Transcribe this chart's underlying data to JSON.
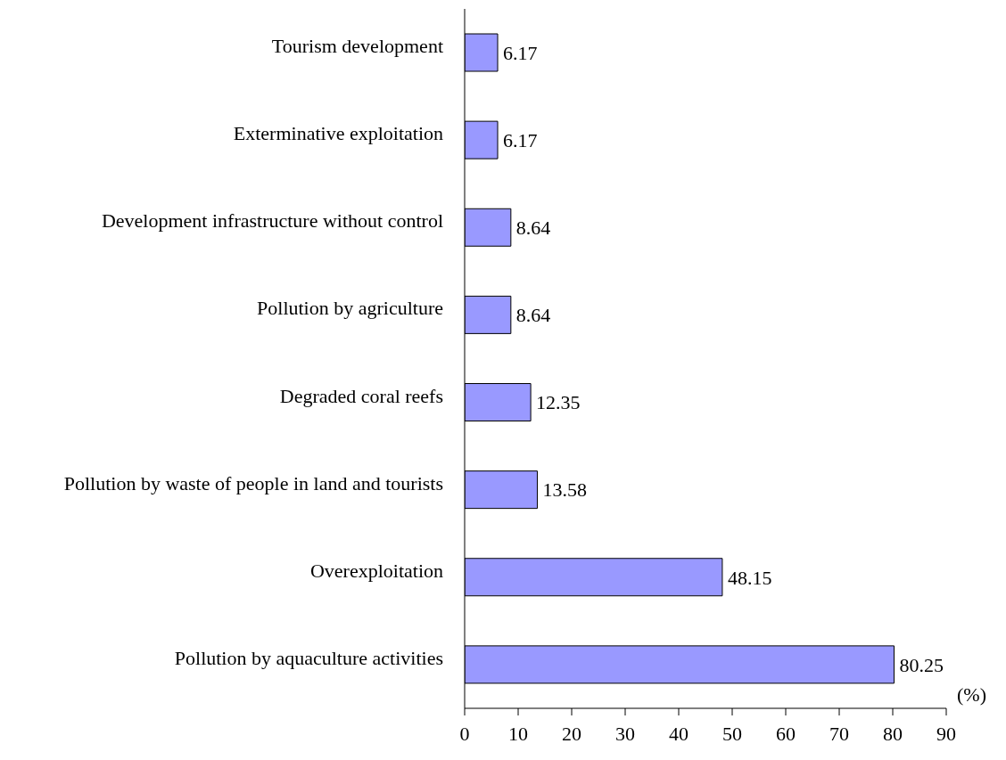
{
  "chart_data": {
    "type": "bar",
    "orientation": "horizontal",
    "xlabel": "(%)",
    "categories": [
      "Tourism development",
      "Exterminative exploitation",
      "Development infrastructure without control",
      "Pollution by agriculture",
      "Degraded coral reefs",
      "Pollution by waste of people in land and tourists",
      "Overexploitation",
      "Pollution by aquaculture activities"
    ],
    "values": [
      6.17,
      6.17,
      8.64,
      8.64,
      12.35,
      13.58,
      48.15,
      80.25
    ],
    "color": "#9999ff",
    "xlim": [
      0,
      90
    ],
    "xticks": [
      0,
      10,
      20,
      30,
      40,
      50,
      60,
      70,
      80,
      90
    ],
    "data_labels": true,
    "grid": false,
    "legend": false
  }
}
